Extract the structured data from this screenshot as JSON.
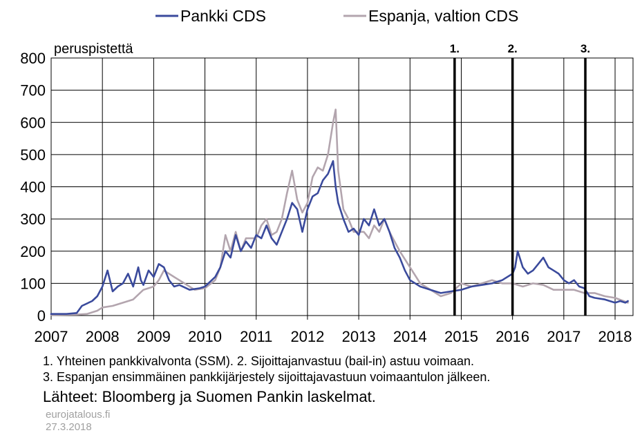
{
  "chart_data": {
    "type": "line",
    "ylabel": "peruspistettä",
    "xlim": [
      2007,
      2018.35
    ],
    "ylim": [
      0,
      800
    ],
    "y_ticks": [
      0,
      100,
      200,
      300,
      400,
      500,
      600,
      700,
      800
    ],
    "x_ticks": [
      2007,
      2008,
      2009,
      2010,
      2011,
      2012,
      2013,
      2014,
      2015,
      2016,
      2017,
      2018
    ],
    "grid": true,
    "legend_position": "top-center",
    "series": [
      {
        "name": "Pankki CDS",
        "color": "#3a4a9c",
        "x": [
          2007.0,
          2007.3,
          2007.5,
          2007.6,
          2007.8,
          2007.9,
          2008.0,
          2008.1,
          2008.2,
          2008.3,
          2008.4,
          2008.5,
          2008.6,
          2008.7,
          2008.75,
          2008.8,
          2008.9,
          2009.0,
          2009.1,
          2009.2,
          2009.3,
          2009.4,
          2009.5,
          2009.7,
          2009.9,
          2010.0,
          2010.2,
          2010.3,
          2010.4,
          2010.5,
          2010.6,
          2010.7,
          2010.8,
          2010.9,
          2011.0,
          2011.1,
          2011.2,
          2011.3,
          2011.4,
          2011.5,
          2011.6,
          2011.7,
          2011.8,
          2011.9,
          2012.0,
          2012.1,
          2012.2,
          2012.3,
          2012.4,
          2012.5,
          2012.55,
          2012.6,
          2012.7,
          2012.8,
          2012.9,
          2013.0,
          2013.1,
          2013.2,
          2013.3,
          2013.4,
          2013.5,
          2013.6,
          2013.7,
          2013.8,
          2013.9,
          2014.0,
          2014.2,
          2014.4,
          2014.6,
          2014.8,
          2015.0,
          2015.2,
          2015.4,
          2015.6,
          2015.8,
          2016.0,
          2016.05,
          2016.1,
          2016.2,
          2016.3,
          2016.4,
          2016.5,
          2016.6,
          2016.7,
          2016.8,
          2016.9,
          2017.0,
          2017.1,
          2017.2,
          2017.3,
          2017.4,
          2017.5,
          2017.6,
          2017.8,
          2018.0,
          2018.1,
          2018.2,
          2018.25
        ],
        "y": [
          5,
          5,
          8,
          30,
          45,
          60,
          90,
          140,
          75,
          90,
          100,
          130,
          90,
          150,
          110,
          95,
          140,
          120,
          160,
          150,
          110,
          90,
          95,
          80,
          85,
          90,
          120,
          150,
          200,
          180,
          250,
          200,
          230,
          210,
          250,
          240,
          280,
          240,
          220,
          260,
          300,
          350,
          330,
          260,
          330,
          370,
          380,
          420,
          440,
          480,
          400,
          350,
          300,
          260,
          270,
          250,
          300,
          280,
          330,
          280,
          300,
          260,
          210,
          180,
          140,
          110,
          90,
          80,
          70,
          75,
          80,
          90,
          95,
          100,
          110,
          130,
          150,
          200,
          150,
          130,
          140,
          160,
          180,
          150,
          140,
          130,
          110,
          100,
          110,
          90,
          85,
          60,
          55,
          50,
          40,
          45,
          40,
          45
        ]
      },
      {
        "name": "Espanja, valtion CDS",
        "color": "#b3a5ae",
        "x": [
          2007.0,
          2007.5,
          2007.7,
          2007.9,
          2008.0,
          2008.2,
          2008.4,
          2008.6,
          2008.8,
          2009.0,
          2009.1,
          2009.2,
          2009.4,
          2009.6,
          2009.8,
          2010.0,
          2010.2,
          2010.3,
          2010.4,
          2010.5,
          2010.6,
          2010.7,
          2010.8,
          2011.0,
          2011.1,
          2011.2,
          2011.3,
          2011.4,
          2011.5,
          2011.6,
          2011.7,
          2011.8,
          2011.9,
          2012.0,
          2012.1,
          2012.2,
          2012.3,
          2012.4,
          2012.5,
          2012.55,
          2012.6,
          2012.7,
          2012.8,
          2012.9,
          2013.0,
          2013.1,
          2013.2,
          2013.3,
          2013.4,
          2013.5,
          2013.6,
          2013.8,
          2014.0,
          2014.2,
          2014.4,
          2014.6,
          2014.8,
          2015.0,
          2015.2,
          2015.4,
          2015.6,
          2015.8,
          2016.0,
          2016.2,
          2016.4,
          2016.6,
          2016.8,
          2017.0,
          2017.2,
          2017.4,
          2017.6,
          2017.8,
          2018.0,
          2018.25
        ],
        "y": [
          2,
          3,
          5,
          15,
          25,
          30,
          40,
          50,
          80,
          90,
          110,
          140,
          120,
          100,
          80,
          85,
          110,
          150,
          250,
          200,
          260,
          200,
          240,
          240,
          280,
          300,
          250,
          260,
          300,
          380,
          450,
          360,
          320,
          350,
          430,
          460,
          450,
          500,
          600,
          640,
          450,
          330,
          300,
          260,
          260,
          260,
          240,
          280,
          260,
          300,
          260,
          200,
          150,
          100,
          80,
          60,
          70,
          100,
          90,
          100,
          110,
          100,
          100,
          90,
          100,
          95,
          80,
          80,
          80,
          70,
          70,
          60,
          55,
          40
        ]
      }
    ],
    "annotations": [
      {
        "label": "1.",
        "x": 2014.87
      },
      {
        "label": "2.",
        "x": 2016.0
      },
      {
        "label": "3.",
        "x": 2017.42
      }
    ]
  },
  "notes": {
    "line1": "1. Yhteinen pankkivalvonta (SSM). 2. Sijoittajanvastuu (bail-in) astuu voimaan.",
    "line2": "3. Espanjan ensimmäinen pankkijärjestely sijoittajavastuun voimaantulon jälkeen."
  },
  "source": "Lähteet: Bloomberg ja Suomen Pankin laskelmat.",
  "site": "eurojatalous.fi",
  "date": "27.3.2018"
}
